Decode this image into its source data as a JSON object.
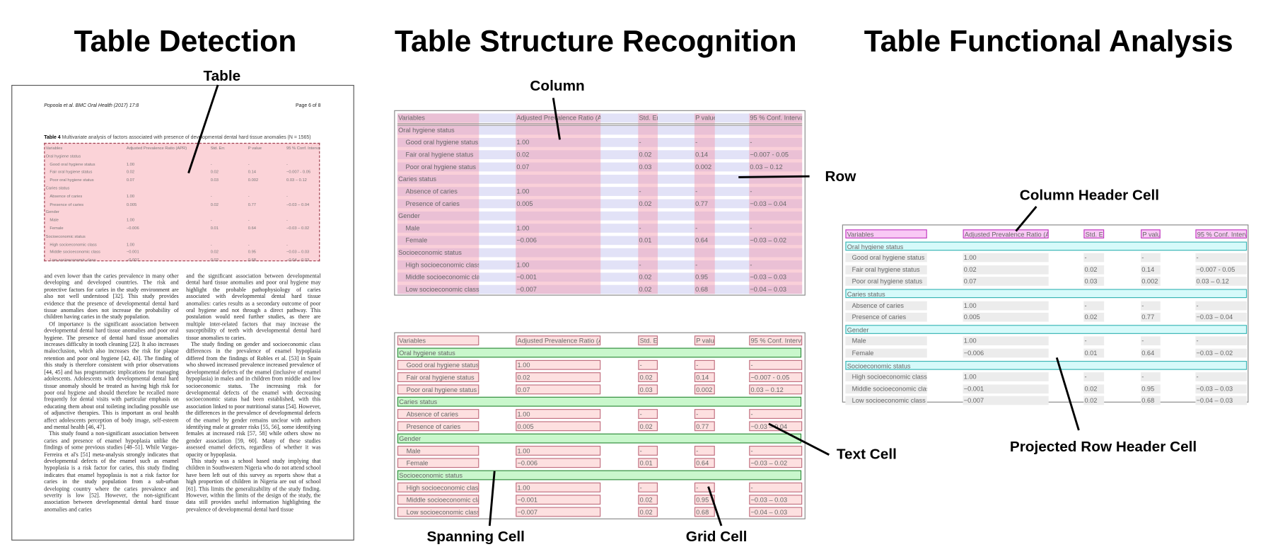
{
  "titles": {
    "detection": "Table Detection",
    "structure": "Table Structure Recognition",
    "functional": "Table Functional Analysis"
  },
  "labels": {
    "table": "Table",
    "column": "Column",
    "row": "Row",
    "column_header_cell": "Column Header Cell",
    "text_cell": "Text Cell",
    "projected_row_header_cell": "Projected Row Header Cell",
    "spanning_cell": "Spanning Cell",
    "grid_cell": "Grid Cell"
  },
  "document": {
    "running_header": "Popoola et al. BMC Oral Health (2017) 17:8",
    "page_number": "Page 6 of 8",
    "caption_label": "Table 4",
    "caption_text": "Multivariate analysis of factors associated with presence of developmental dental hard tissue anomalies (N = 1565)",
    "left_column": [
      "and even lower than the caries prevalence in many other developing and developed countries. The risk and protective factors for caries in the study environment are also not well understood [32]. This study provides evidence that the presence of developmental dental hard tissue anomalies does not increase the probability of children having caries in the study population.",
      "Of importance is the significant association between developmental dental hard tissue anomalies and poor oral hygiene. The presence of dental hard tissue anomalies increases difficulty in tooth cleaning [22]. It also increases malocclusion, which also increases the risk for plaque retention and poor oral hygiene [42, 43]. The finding of this study is therefore consistent with prior observations [44, 45] and has programmatic implications for managing adolescents. Adolescents with developmental dental hard tissue anomaly should be treated as having high risk for poor oral hygiene and should therefore be recalled more frequently for dental visits with particular emphasis on educating them about oral toileting including possible use of adjunctive therapies. This is important as oral health affect adolescents perception of body image, self-esteem and mental health [46, 47].",
      "This study found a non-significant association between caries and presence of enamel hypoplasia unlike the findings of some previous studies [48–51]. While Vargas-Ferreira et al's [51] meta-analysis strongly indicates that developmental defects of the enamel such as enamel hypoplasia is a risk factor for caries, this study finding indicates that enamel hypoplasia is not a risk factor for caries in the study population from a sub-urban developing country where the caries prevalence and severity is low [52]. However, the non-significant association between developmental dental hard tissue anomalies and caries"
    ],
    "right_column": [
      "and the significant association between developmental dental hard tissue anomalies and poor oral hygiene may highlight the probable pathophysiology of caries associated with developmental dental hard tissue anomalies: caries results as a secondary outcome of poor oral hygiene and not through a direct pathway. This postulation would need further studies, as there are multiple inter-related factors that may increase the susceptibility of teeth with developmental dental hard tissue anomalies to caries.",
      "The study finding on gender and socioeconomic class differences in the prevalence of enamel hypoplasia differed from the findings of Robles et al. [53] in Spain who showed increased prevalence increased prevalence of developmental defects of the enamel (inclusive of enamel hypoplasia) in males and in children from middle and low socioeconomic status. The increasing risk for developmental defects of the enamel with decreasing socioeconomic status had been established, with this association linked to poor nutritional status [54]. However, the differences in the prevalence of developmental defects of the enamel by gender remains unclear with authors identifying male at greater risks [55, 56], some identifying females at increased risk [57, 58] while others show no gender association [59, 60]. Many of these studies assessed enamel defects, regardless of whether it was opacity or hypoplasia.",
      "This study was a school based study implying that children in Southwestern Nigeria who do not attend school have been left out of this survey as reports show that a high proportion of children in Nigeria are out of school [61]. This limits the generalizability of the study finding. However, within the limits of the design of the study, the data still provides useful information highlighting the prevalence of developmental dental hard tissue"
    ]
  },
  "table": {
    "headers": [
      "Variables",
      "Adjusted Prevalence Ratio (APR)",
      "Std. Err.",
      "P value",
      "95 % Conf. Interval"
    ],
    "rows": [
      {
        "type": "section",
        "cells": [
          "Oral hygiene status"
        ]
      },
      {
        "type": "item",
        "cells": [
          "Good oral hygiene status",
          "1.00",
          "-",
          "-",
          "-"
        ]
      },
      {
        "type": "item",
        "cells": [
          "Fair oral hygiene status",
          "0.02",
          "0.02",
          "0.14",
          "−0.007 - 0.05"
        ]
      },
      {
        "type": "item",
        "cells": [
          "Poor oral hygiene status",
          "0.07",
          "0.03",
          "0.002",
          "0.03 – 0.12"
        ]
      },
      {
        "type": "section",
        "cells": [
          "Caries status"
        ]
      },
      {
        "type": "item",
        "cells": [
          "Absence of caries",
          "1.00",
          "-",
          "-",
          "-"
        ]
      },
      {
        "type": "item",
        "cells": [
          "Presence of caries",
          "0.005",
          "0.02",
          "0.77",
          "−0.03 – 0.04"
        ]
      },
      {
        "type": "section",
        "cells": [
          "Gender"
        ]
      },
      {
        "type": "item",
        "cells": [
          "Male",
          "1.00",
          "-",
          "-",
          "-"
        ]
      },
      {
        "type": "item",
        "cells": [
          "Female",
          "−0.006",
          "0.01",
          "0.64",
          "−0.03 – 0.02"
        ]
      },
      {
        "type": "section",
        "cells": [
          "Socioeconomic status"
        ]
      },
      {
        "type": "item",
        "cells": [
          "High socioeconomic class",
          "1.00",
          "-",
          "-",
          "-"
        ]
      },
      {
        "type": "item",
        "cells": [
          "Middle socioeconomic class",
          "−0.001",
          "0.02",
          "0.95",
          "−0.03 – 0.03"
        ]
      },
      {
        "type": "item",
        "cells": [
          "Low socioeconomic class",
          "−0.007",
          "0.02",
          "0.68",
          "−0.04 – 0.03"
        ]
      }
    ]
  },
  "colors": {
    "detection_fill": "#fbd3d8",
    "column_band": "#f596aa",
    "row_band": "#e2e2f7",
    "grid_cell_fill": "#fde0e0",
    "grid_cell_border": "#c07080",
    "spanning_cell_fill": "#c9f7cc",
    "spanning_cell_border": "#2e8b3a",
    "column_header_fill": "#f9c9f5",
    "column_header_border": "#c03cc0",
    "projected_row_header_fill": "#d6fafa",
    "projected_row_header_border": "#3ab5b5",
    "data_cell_fill": "#ececec"
  }
}
